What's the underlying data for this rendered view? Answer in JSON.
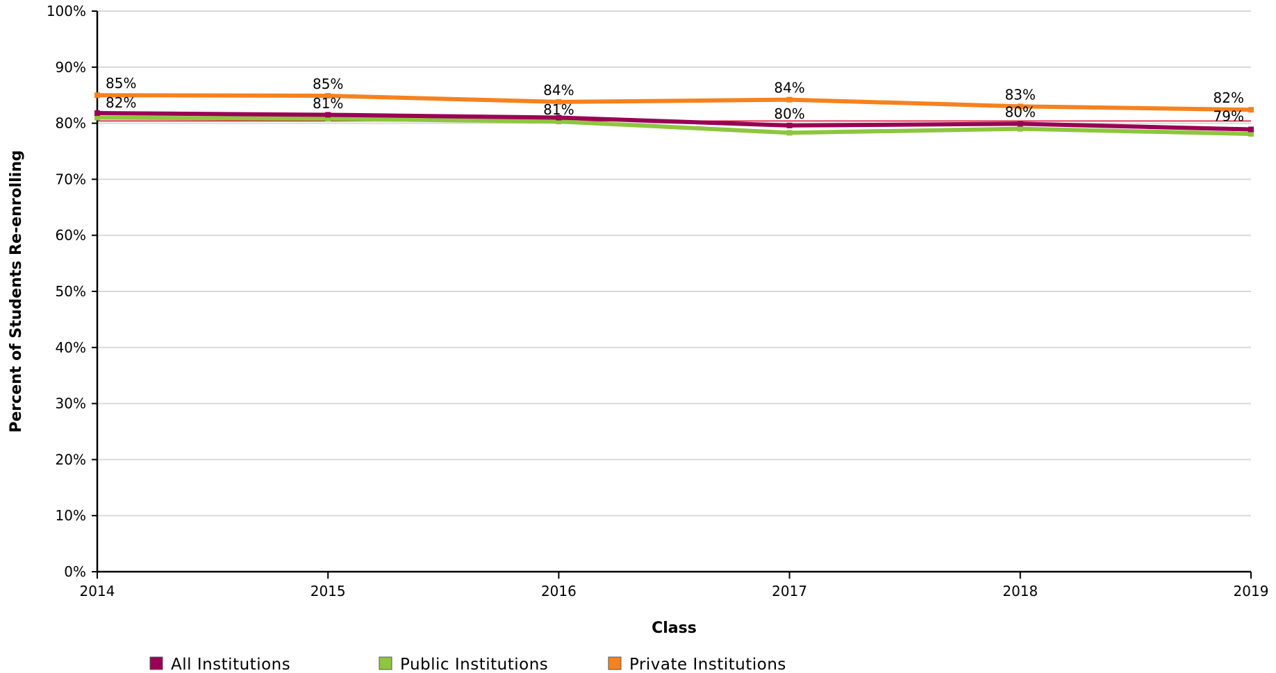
{
  "chart_data": {
    "type": "line",
    "title": "",
    "xlabel": "Class",
    "ylabel": "Percent of Students Re-enrolling",
    "x": [
      "2014",
      "2015",
      "2016",
      "2017",
      "2018",
      "2019"
    ],
    "ylim": [
      0,
      100
    ],
    "yticks": [
      "0%",
      "10%",
      "20%",
      "30%",
      "40%",
      "50%",
      "60%",
      "70%",
      "80%",
      "90%",
      "100%"
    ],
    "grid": true,
    "legend_position": "bottom-left",
    "series": [
      {
        "name": "All Institutions",
        "color": "#990055",
        "values": [
          81.8,
          81.5,
          81.0,
          79.6,
          79.9,
          78.9
        ],
        "labels": [
          "82%",
          "81%",
          "81%",
          "80%",
          "80%",
          "79%"
        ]
      },
      {
        "name": "Public Institutions",
        "color": "#8dc63f",
        "values": [
          81.0,
          80.8,
          80.3,
          78.3,
          79.0,
          78.1
        ],
        "labels": [
          "",
          "",
          "",
          "",
          "",
          ""
        ]
      },
      {
        "name": "Private Institutions",
        "color": "#f5821f",
        "values": [
          85.0,
          84.9,
          83.8,
          84.2,
          83.0,
          82.4
        ],
        "labels": [
          "85%",
          "85%",
          "84%",
          "84%",
          "83%",
          "82%"
        ]
      }
    ],
    "reference_line": {
      "value": 80.4,
      "color": "#e0002a"
    }
  }
}
